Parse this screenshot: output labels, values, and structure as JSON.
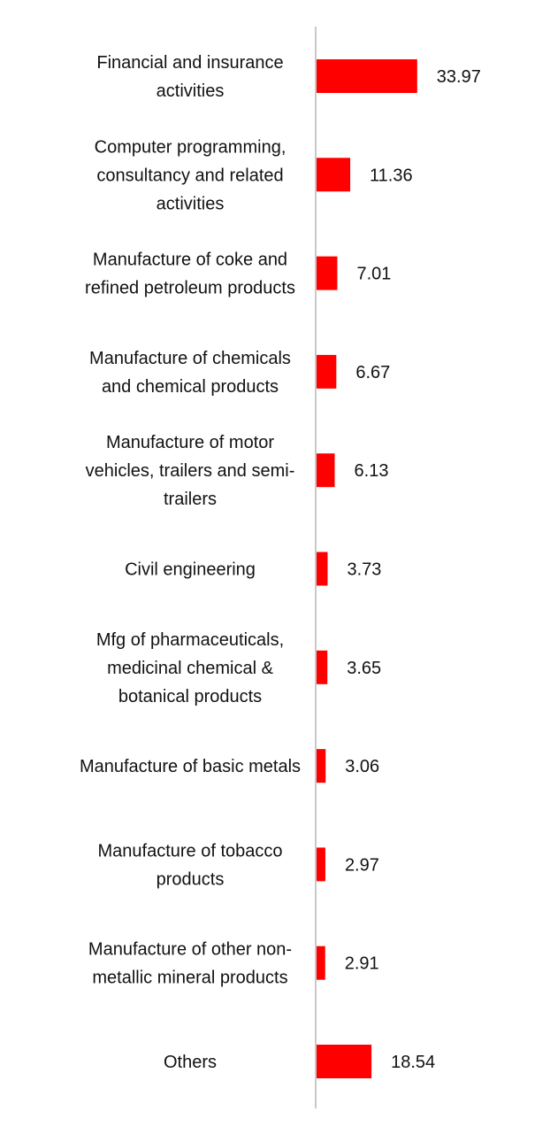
{
  "chart_data": {
    "type": "bar",
    "orientation": "horizontal",
    "categories": [
      [
        "Financial and insurance",
        "activities"
      ],
      [
        "Computer programming,",
        "consultancy and related",
        "activities"
      ],
      [
        "Manufacture of coke and",
        "refined petroleum products"
      ],
      [
        "Manufacture of chemicals",
        "and chemical products"
      ],
      [
        "Manufacture of motor",
        "vehicles, trailers and semi-",
        "trailers"
      ],
      [
        "Civil engineering"
      ],
      [
        "Mfg of pharmaceuticals,",
        "medicinal chemical &",
        "botanical products"
      ],
      [
        "Manufacture of basic metals"
      ],
      [
        "Manufacture of tobacco",
        "products"
      ],
      [
        "Manufacture of other non-",
        "metallic mineral products"
      ],
      [
        "Others"
      ]
    ],
    "values": [
      33.97,
      11.36,
      7.01,
      6.67,
      6.13,
      3.73,
      3.65,
      3.06,
      2.97,
      2.91,
      18.54
    ],
    "value_labels": [
      "33.97",
      "11.36",
      "7.01",
      "6.67",
      "6.13",
      "3.73",
      "3.65",
      "3.06",
      "2.97",
      "2.91",
      "18.54"
    ],
    "title": "",
    "xlabel": "",
    "ylabel": "",
    "xlim": [
      0,
      100
    ],
    "grid": false,
    "legend": "none",
    "bar_color": "#ff0000",
    "axis_color": "#c8c8c8",
    "label_color": "#111111"
  }
}
